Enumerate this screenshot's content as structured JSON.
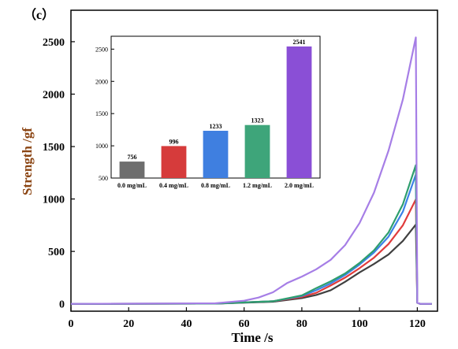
{
  "panel_label": "（c）",
  "chart_data": [
    {
      "type": "line",
      "xlabel": "Time /s",
      "ylabel": "Strength /gf",
      "xlim": [
        0,
        127
      ],
      "ylim": [
        -70,
        2800
      ],
      "xticks": [
        0,
        20,
        40,
        60,
        80,
        100,
        120
      ],
      "yticks": [
        0,
        500,
        1000,
        1500,
        2000,
        2500
      ],
      "grid": false,
      "series": [
        {
          "color": "#404040",
          "x": [
            0,
            50,
            70,
            80,
            85,
            90,
            95,
            100,
            105,
            110,
            115,
            119.5,
            120,
            121,
            125
          ],
          "y": [
            0,
            2,
            20,
            55,
            85,
            130,
            210,
            300,
            380,
            470,
            600,
            756,
            10,
            0,
            0
          ]
        },
        {
          "color": "#e03c3c",
          "x": [
            0,
            50,
            70,
            80,
            85,
            90,
            95,
            100,
            105,
            110,
            115,
            119.5,
            120,
            121,
            125
          ],
          "y": [
            0,
            2,
            25,
            65,
            105,
            175,
            250,
            340,
            440,
            570,
            750,
            996,
            10,
            0,
            0
          ]
        },
        {
          "color": "#3c82e6",
          "x": [
            0,
            50,
            70,
            80,
            85,
            90,
            95,
            100,
            105,
            110,
            115,
            119.5,
            120,
            121,
            125
          ],
          "y": [
            0,
            2,
            25,
            75,
            130,
            195,
            275,
            375,
            490,
            640,
            880,
            1233,
            10,
            0,
            0
          ]
        },
        {
          "color": "#2e9e6e",
          "x": [
            0,
            50,
            70,
            80,
            85,
            90,
            95,
            100,
            105,
            110,
            115,
            119.5,
            120,
            121,
            125
          ],
          "y": [
            0,
            2,
            25,
            80,
            150,
            215,
            290,
            390,
            510,
            680,
            950,
            1323,
            10,
            0,
            0
          ]
        },
        {
          "color": "#a67ee6",
          "x": [
            0,
            50,
            60,
            65,
            70,
            75,
            80,
            85,
            90,
            95,
            100,
            105,
            110,
            115,
            119.5,
            120,
            121,
            125
          ],
          "y": [
            0,
            5,
            30,
            60,
            110,
            200,
            260,
            330,
            420,
            560,
            770,
            1060,
            1460,
            1950,
            2541,
            10,
            0,
            0
          ]
        }
      ]
    },
    {
      "type": "bar",
      "categories": [
        "0.0 mg/mL",
        "0.4 mg/mL",
        "0.8 mg/mL",
        "1.2 mg/mL",
        "2.0 mg/mL"
      ],
      "values": [
        756,
        996,
        1233,
        1323,
        2541
      ],
      "colors": [
        "#6e6e6e",
        "#d63b3b",
        "#3f7fe0",
        "#3ea57a",
        "#8a4fd6"
      ],
      "ylim": [
        500,
        2700
      ],
      "yticks": [
        500,
        1000,
        1500,
        2000,
        2500
      ],
      "data_labels": [
        "756",
        "996",
        "1233",
        "1323",
        "2541"
      ]
    }
  ]
}
